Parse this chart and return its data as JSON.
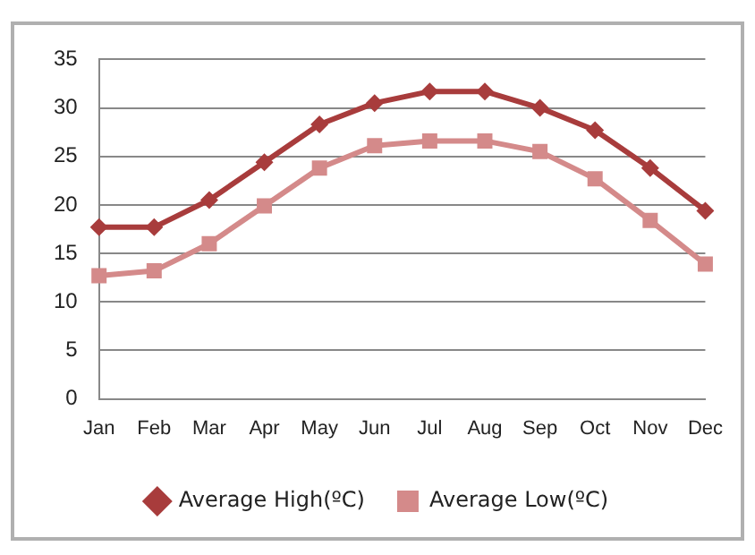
{
  "chart_data": {
    "type": "line",
    "categories": [
      "Jan",
      "Feb",
      "Mar",
      "Apr",
      "May",
      "Jun",
      "Jul",
      "Aug",
      "Sep",
      "Oct",
      "Nov",
      "Dec"
    ],
    "series": [
      {
        "name": "Average High(ºC)",
        "color": "#a83c3c",
        "marker": "diamond",
        "values": [
          17.7,
          17.7,
          20.5,
          24.4,
          28.3,
          30.5,
          31.7,
          31.7,
          30,
          27.7,
          23.8,
          19.4
        ]
      },
      {
        "name": "Average Low(ºC)",
        "color": "#d48a8a",
        "marker": "square",
        "values": [
          12.7,
          13.2,
          16,
          19.9,
          23.8,
          26.1,
          26.6,
          26.6,
          25.5,
          22.7,
          18.4,
          13.9
        ]
      }
    ],
    "ylim": [
      0,
      35
    ],
    "yticks": [
      0,
      5,
      10,
      15,
      20,
      25,
      30,
      35
    ],
    "grid": "y",
    "legend": "bottom",
    "line_style": "solid"
  }
}
